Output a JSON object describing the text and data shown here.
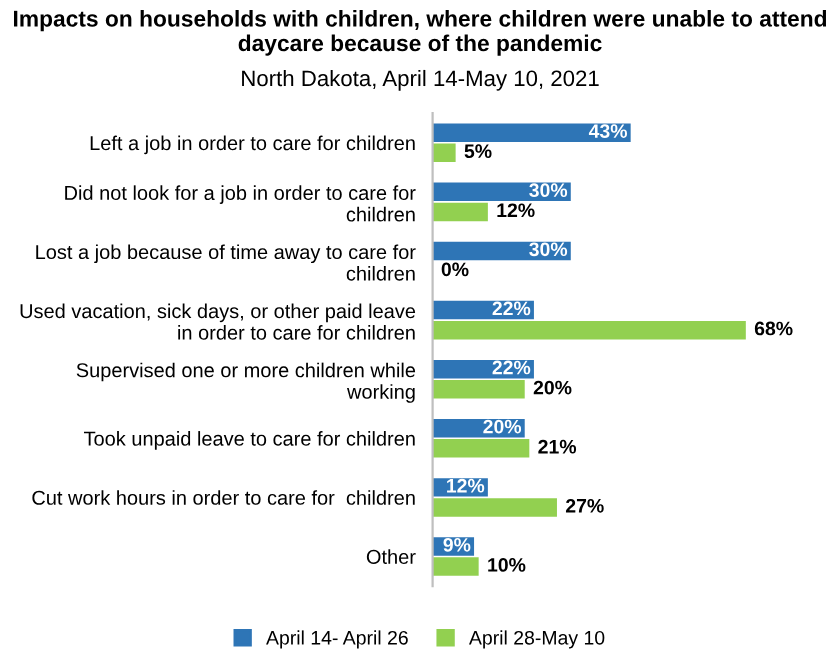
{
  "chart_data": {
    "type": "bar",
    "orientation": "horizontal",
    "title": "Impacts on households with children, where children were unable to attend daycare because of the pandemic",
    "subtitle": "North Dakota, April 14-May 10, 2021",
    "categories": [
      "Left a job in order to care for children",
      "Did not look for a job in order to care for\nchildren",
      "Lost a job because of time away to care for\nchildren",
      "Used vacation, sick days, or other paid leave\nin order to care for children",
      "Supervised one or more children while\nworking",
      "Took unpaid leave to care for children",
      "Cut work hours in order to care for  children",
      "Other"
    ],
    "series": [
      {
        "name": "April 14- April 26",
        "color": "#2e75b6",
        "values": [
          43,
          30,
          30,
          22,
          22,
          20,
          12,
          9
        ],
        "value_labels": [
          "43%",
          "30%",
          "30%",
          "22%",
          "22%",
          "20%",
          "12%",
          "9%"
        ]
      },
      {
        "name": "April 28-May 10",
        "color": "#92d050",
        "values": [
          5,
          12,
          0,
          68,
          20,
          21,
          27,
          10
        ],
        "value_labels": [
          "5%",
          "12%",
          "0%",
          "68%",
          "20%",
          "21%",
          "27%",
          "10%"
        ]
      }
    ],
    "legend": "bottom",
    "grid": false
  }
}
